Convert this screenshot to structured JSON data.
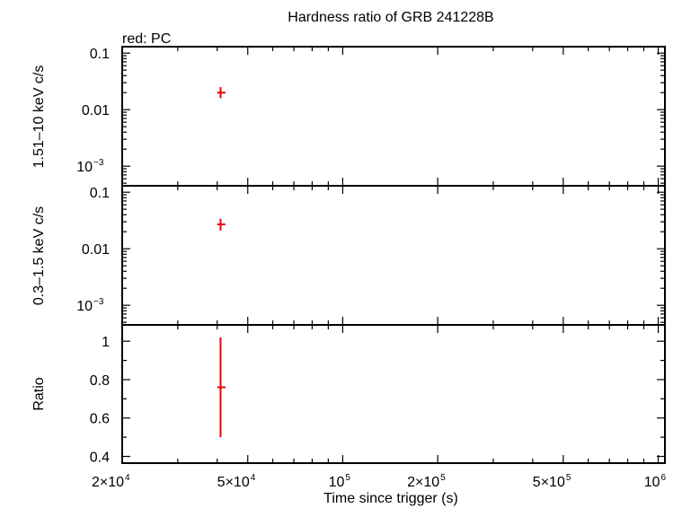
{
  "chart_data": {
    "type": "scatter",
    "title": "Hardness ratio of GRB 241228B",
    "legend_text": "red: PC",
    "xlabel": "Time since trigger (s)",
    "x_scale": "log",
    "xlim": [
      20000,
      1050000
    ],
    "x_ticks": [
      {
        "value": 20000,
        "base": "2×10",
        "exp": "4"
      },
      {
        "value": 50000,
        "base": "5×10",
        "exp": "4"
      },
      {
        "value": 100000,
        "base": "10",
        "exp": "5"
      },
      {
        "value": 200000,
        "base": "2×10",
        "exp": "5"
      },
      {
        "value": 500000,
        "base": "5×10",
        "exp": "5"
      },
      {
        "value": 1000000,
        "base": "10",
        "exp": "6"
      }
    ],
    "series_color": "#ee0000",
    "panels": [
      {
        "id": "hard",
        "ylabel": "1.51–10 keV c/s",
        "y_scale": "log",
        "ylim": [
          0.00045,
          0.13
        ],
        "y_ticks": [
          {
            "value": 0.1,
            "label": "0.1"
          },
          {
            "value": 0.01,
            "label": "0.01"
          },
          {
            "value": 0.001,
            "base": "10",
            "exp": "−3"
          }
        ],
        "points": [
          {
            "x": 41000,
            "y": 0.02,
            "y_low": 0.016,
            "y_high": 0.025,
            "x_low": 40000,
            "x_high": 42500
          }
        ]
      },
      {
        "id": "soft",
        "ylabel": "0.3–1.5 keV c/s",
        "y_scale": "log",
        "ylim": [
          0.00045,
          0.13
        ],
        "y_ticks": [
          {
            "value": 0.1,
            "label": "0.1"
          },
          {
            "value": 0.01,
            "label": "0.01"
          },
          {
            "value": 0.001,
            "base": "10",
            "exp": "−3"
          }
        ],
        "points": [
          {
            "x": 41000,
            "y": 0.027,
            "y_low": 0.021,
            "y_high": 0.034,
            "x_low": 40000,
            "x_high": 42500
          }
        ]
      },
      {
        "id": "ratio",
        "ylabel": "Ratio",
        "y_scale": "linear",
        "ylim": [
          0.365,
          1.085
        ],
        "y_ticks": [
          {
            "value": 1.0,
            "label": "1"
          },
          {
            "value": 0.8,
            "label": "0.8"
          },
          {
            "value": 0.6,
            "label": "0.6"
          },
          {
            "value": 0.4,
            "label": "0.4"
          }
        ],
        "points": [
          {
            "x": 41000,
            "y": 0.76,
            "y_low": 0.5,
            "y_high": 1.02,
            "x_low": 40000,
            "x_high": 42500
          }
        ]
      }
    ]
  }
}
